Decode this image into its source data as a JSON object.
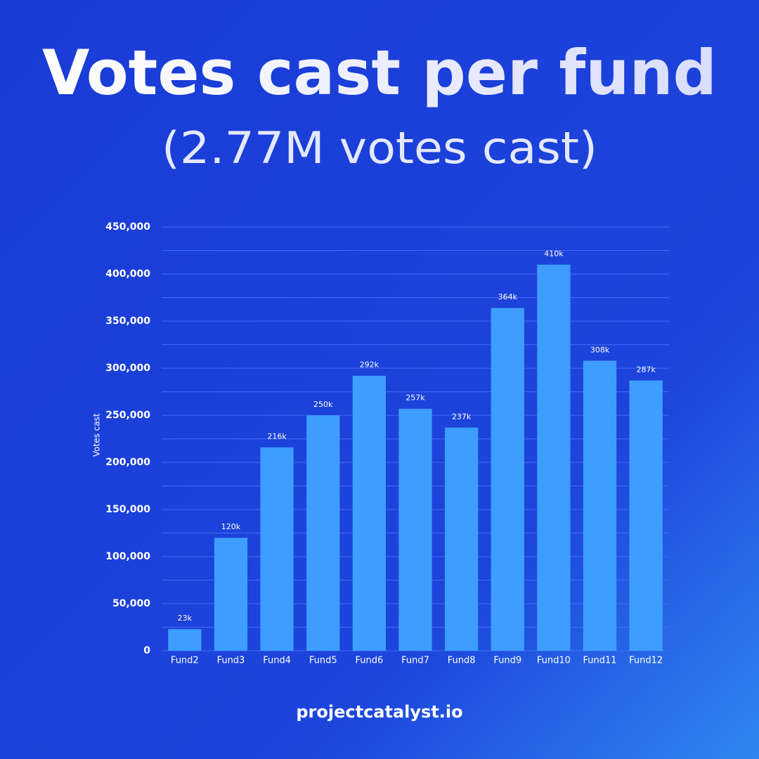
{
  "chart_data": {
    "type": "bar",
    "title": "Votes cast per fund",
    "subtitle": "(2.77M votes cast)",
    "y_label": "Votes cast",
    "footer": "projectcatalyst.io",
    "categories": [
      "Fund2",
      "Fund3",
      "Fund4",
      "Fund5",
      "Fund6",
      "Fund7",
      "Fund8",
      "Fund9",
      "Fund10",
      "Fund11",
      "Fund12"
    ],
    "values": [
      23000,
      120000,
      216000,
      250000,
      292000,
      257000,
      237000,
      364000,
      410000,
      308000,
      287000
    ],
    "value_labels": [
      "23k",
      "120k",
      "216k",
      "250k",
      "292k",
      "257k",
      "237k",
      "364k",
      "410k",
      "308k",
      "287k"
    ],
    "color": "#3d9eff",
    "ylim": [
      0,
      450000
    ],
    "yticks": [
      0,
      {
        "value": 50000,
        "label": "50,000"
      },
      {
        "value": 100000,
        "label": "100,000"
      },
      {
        "value": 150000,
        "label": "150,000"
      },
      {
        "value": 200000,
        "label": "200,000"
      },
      {
        "value": 250000,
        "label": "250,000"
      },
      {
        "value": 300000,
        "label": "300,000"
      },
      {
        "value": 350000,
        "label": "350,000"
      },
      {
        "value": 400000,
        "label": "400,000"
      },
      {
        "value": 450000,
        "label": "450,000"
      }
    ],
    "ygridlines": [
      0,
      25000,
      50000,
      75000,
      100000,
      125000,
      150000,
      175000,
      200000,
      225000,
      250000,
      275000,
      300000,
      325000,
      350000,
      375000,
      400000,
      425000,
      450000
    ],
    "grid": true
  }
}
